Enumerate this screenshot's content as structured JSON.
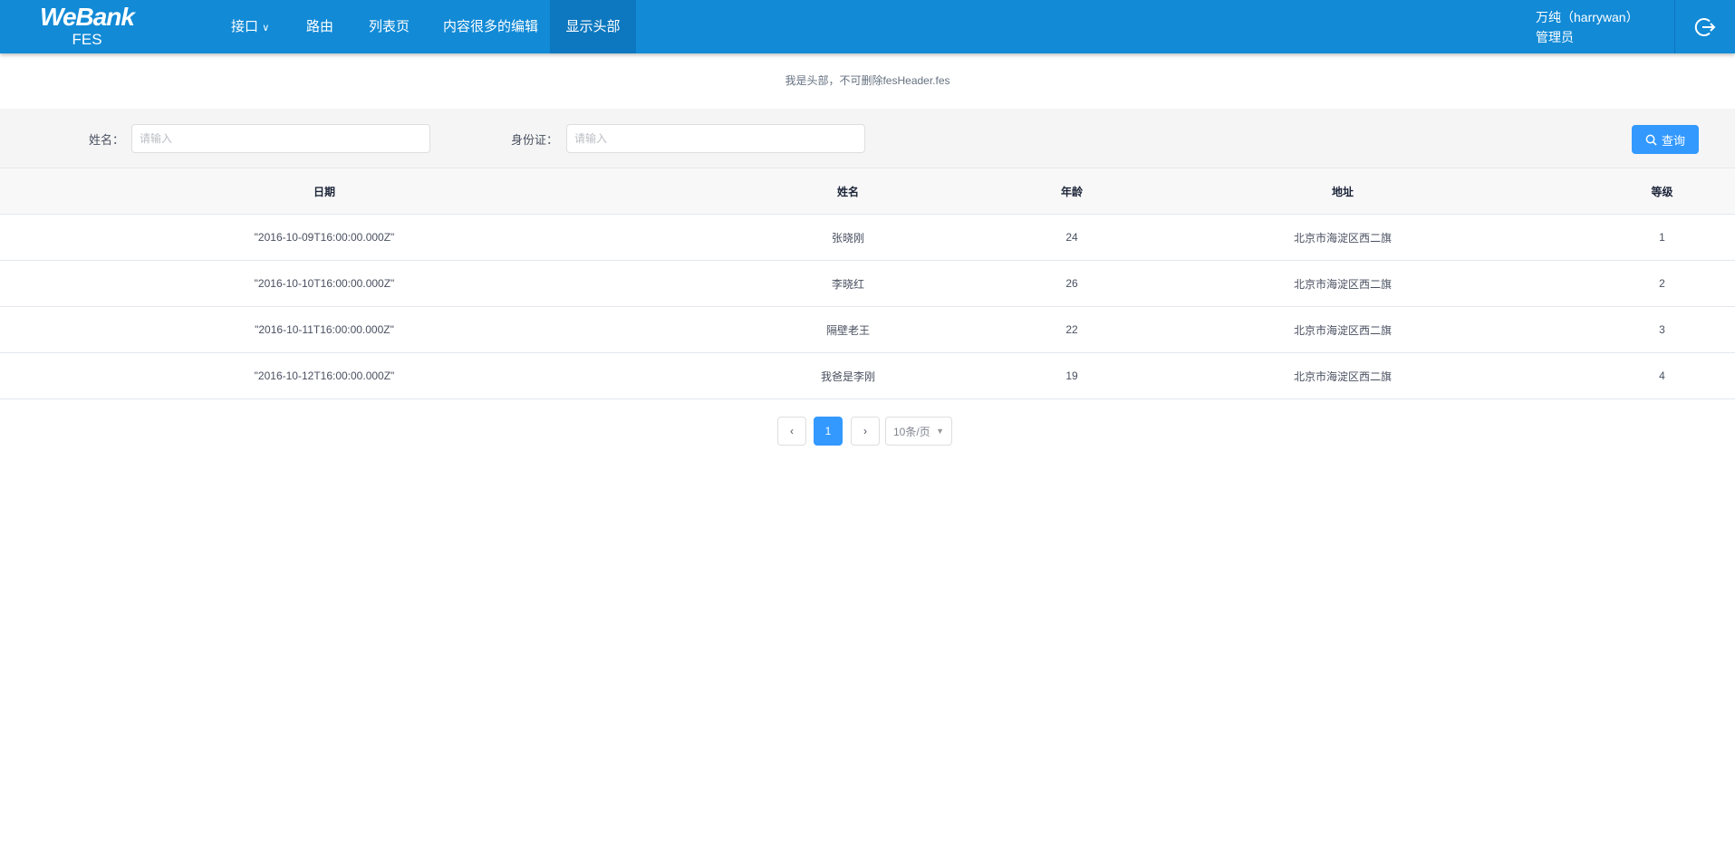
{
  "header": {
    "logo": "WeBank",
    "logo_sub": "FES",
    "nav": [
      {
        "label": "接口"
      },
      {
        "label": "路由"
      },
      {
        "label": "列表页"
      },
      {
        "label": "内容很多的编辑"
      },
      {
        "label": "显示头部",
        "active": true
      }
    ],
    "user_name": "万纯（harrywan）",
    "user_role": "管理员"
  },
  "notice": "我是头部，不可删除fesHeader.fes",
  "filter": {
    "name_label": "姓名：",
    "name_placeholder": "请输入",
    "id_label": "身份证：",
    "id_placeholder": "请输入",
    "query_label": "查询"
  },
  "table": {
    "columns": [
      "日期",
      "姓名",
      "年龄",
      "地址",
      "等级"
    ],
    "rows": [
      [
        "\"2016-10-09T16:00:00.000Z\"",
        "张晓刚",
        "24",
        "北京市海淀区西二旗",
        "1"
      ],
      [
        "\"2016-10-10T16:00:00.000Z\"",
        "李晓红",
        "26",
        "北京市海淀区西二旗",
        "2"
      ],
      [
        "\"2016-10-11T16:00:00.000Z\"",
        "隔壁老王",
        "22",
        "北京市海淀区西二旗",
        "3"
      ],
      [
        "\"2016-10-12T16:00:00.000Z\"",
        "我爸是李刚",
        "19",
        "北京市海淀区西二旗",
        "4"
      ]
    ]
  },
  "pagination": {
    "current": "1",
    "page_size": "10条/页"
  },
  "colors": {
    "header": "#128ad6",
    "primary": "#3399ff"
  }
}
